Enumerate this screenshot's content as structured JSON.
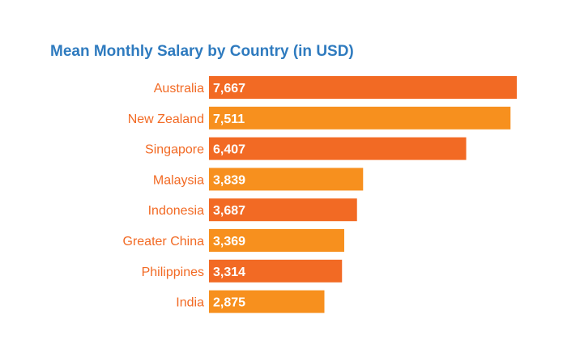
{
  "chart_data": {
    "type": "bar",
    "orientation": "horizontal",
    "title": "Mean Monthly Salary by Country (in USD)",
    "xlabel": "",
    "ylabel": "",
    "categories": [
      "Australia",
      "New Zealand",
      "Singapore",
      "Malaysia",
      "Indonesia",
      "Greater China",
      "Philippines",
      "India"
    ],
    "values": [
      7667,
      7511,
      6407,
      3839,
      3687,
      3369,
      3314,
      2875
    ],
    "value_labels": [
      "7,667",
      "7,511",
      "6,407",
      "3,839",
      "3,687",
      "3,369",
      "3,314",
      "2,875"
    ],
    "xlim": [
      0,
      7667
    ],
    "grid": false,
    "legend": "none",
    "colors": {
      "title": "#2f7bbf",
      "bar_dark": "#f26a24",
      "bar_light": "#f7901e",
      "category_label": "#f26a24",
      "value_label": "#ffffff"
    }
  }
}
